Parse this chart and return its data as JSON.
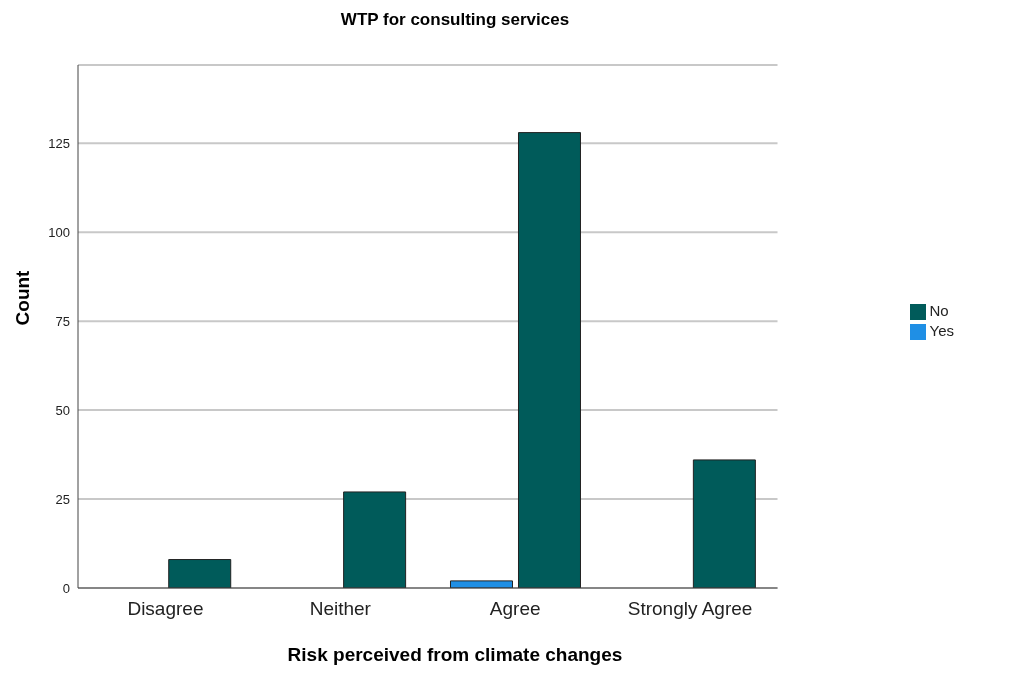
{
  "chart_data": {
    "type": "bar",
    "title": "WTP for  consulting services",
    "xlabel": "Risk perceived from climate changes",
    "ylabel": "Count",
    "categories": [
      "Disagree",
      "Neither",
      "Agree",
      "Strongly Agree"
    ],
    "series": [
      {
        "name": "Yes",
        "color": "#1f8fe5",
        "values": [
          0,
          0,
          2,
          0
        ]
      },
      {
        "name": "No",
        "color": "#005b5a",
        "values": [
          8,
          27,
          128,
          36
        ]
      }
    ],
    "ylim": [
      0,
      147
    ],
    "yticks": [
      0,
      25,
      50,
      75,
      100,
      125
    ],
    "grid": "y",
    "legend": "right"
  }
}
